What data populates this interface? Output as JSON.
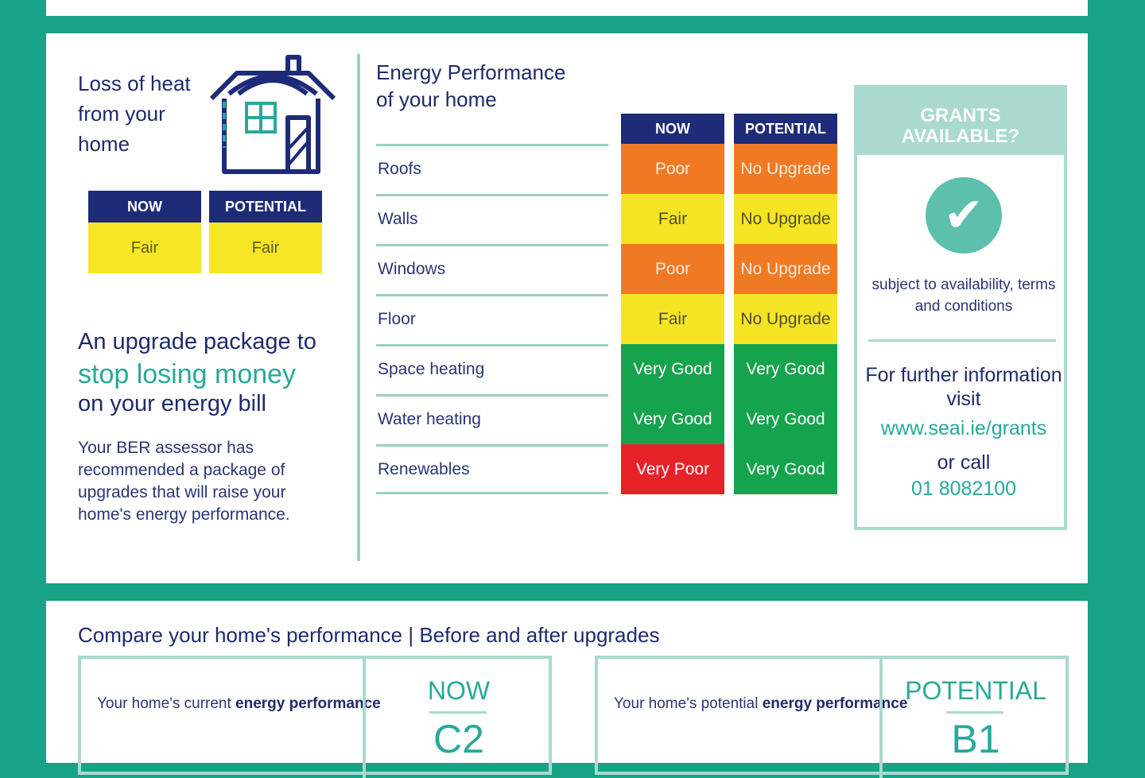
{
  "loss_of_heat": {
    "title": "Loss of heat from your home",
    "now_label": "NOW",
    "potential_label": "POTENTIAL",
    "now_value": "Fair",
    "potential_value": "Fair"
  },
  "upgrade": {
    "line1": "An upgrade package to",
    "line2": "stop losing money",
    "line3": "on your energy bill",
    "body": "Your BER assessor has recommended a package of upgrades that will raise your home's energy performance."
  },
  "energy_performance": {
    "title": "Energy Performance of your home",
    "now_header": "NOW",
    "potential_header": "POTENTIAL",
    "rows": [
      {
        "label": "Roofs",
        "now": "Poor",
        "potential": "No Upgrade"
      },
      {
        "label": "Walls",
        "now": "Fair",
        "potential": "No Upgrade"
      },
      {
        "label": "Windows",
        "now": "Poor",
        "potential": "No Upgrade"
      },
      {
        "label": "Floor",
        "now": "Fair",
        "potential": "No Upgrade"
      },
      {
        "label": "Space heating",
        "now": "Very Good",
        "potential": "Very Good"
      },
      {
        "label": "Water heating",
        "now": "Very Good",
        "potential": "Very Good"
      },
      {
        "label": "Renewables",
        "now": "Very Poor",
        "potential": "Very Good"
      }
    ]
  },
  "grants": {
    "title_line1": "GRANTS",
    "title_line2": "AVAILABLE?",
    "check_icon": "check-icon",
    "subject": "subject to availability, terms and conditions",
    "further": "For further information visit",
    "url": "www.seai.ie/grants",
    "or_call": "or call",
    "phone": "01 8082100"
  },
  "compare": {
    "title": "Compare your home's performance | Before and after upgrades",
    "current": {
      "desc_prefix": "Your home's current ",
      "desc_bold": "energy performance",
      "label": "NOW",
      "grade": "C2"
    },
    "potential": {
      "desc_prefix": "Your home's potential ",
      "desc_bold": "energy performance",
      "label": "POTENTIAL",
      "grade": "B1"
    }
  },
  "colors": {
    "background": "#18a387",
    "navy": "#1d2b78",
    "teal_text": "#27a99a",
    "very_good": "#16a34d",
    "poor": "#f07a23",
    "fair": "#f5e424",
    "very_poor": "#e62228"
  }
}
